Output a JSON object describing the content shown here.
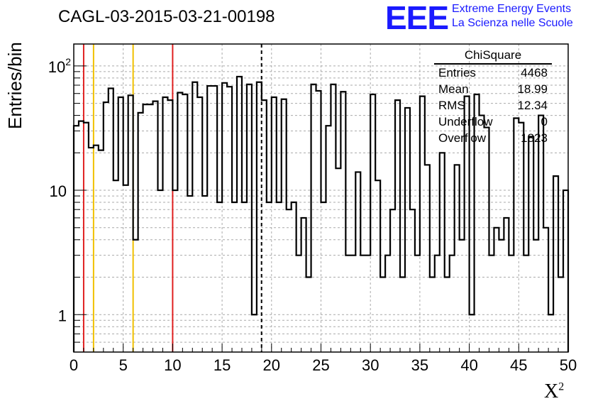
{
  "header": {
    "title": "CAGL-03-2015-03-21-00198"
  },
  "logo": {
    "mark": "EEE",
    "line1": "Extreme Energy Events",
    "line2": "La Scienza nelle Scuole"
  },
  "stats": {
    "title": "ChiSquare",
    "rows": [
      {
        "label": "Entries",
        "value": "4468"
      },
      {
        "label": "Mean",
        "value": "18.99"
      },
      {
        "label": "RMS",
        "value": "12.34"
      },
      {
        "label": "Underflow",
        "value": "0"
      },
      {
        "label": "Overflow",
        "value": "1823"
      }
    ]
  },
  "chart_data": {
    "type": "histogram",
    "title": "CAGL-03-2015-03-21-00198",
    "xlabel": "X",
    "xlabel_sup": "2",
    "ylabel": "Entries/bin",
    "xlim": [
      0,
      50
    ],
    "ylim": [
      0.5,
      150
    ],
    "yscale": "log",
    "bin_width": 0.5,
    "grid": true,
    "x_ticks": [
      "0",
      "5",
      "10",
      "15",
      "20",
      "25",
      "30",
      "35",
      "40",
      "45",
      "50"
    ],
    "y_ticks": [
      {
        "value": 1,
        "label": "1",
        "sup": ""
      },
      {
        "value": 10,
        "label": "10",
        "sup": ""
      },
      {
        "value": 100,
        "label": "10",
        "sup": "2"
      }
    ],
    "values": [
      33,
      36,
      35,
      22,
      23,
      21,
      51,
      66,
      12,
      56,
      11,
      58,
      4,
      42,
      49,
      49,
      52,
      10,
      56,
      53,
      10,
      61,
      59,
      9,
      74,
      56,
      9,
      69,
      69,
      8,
      73,
      68,
      8,
      82,
      8,
      71,
      1,
      74,
      53,
      8,
      56,
      8,
      54,
      7,
      8,
      3,
      6,
      2,
      71,
      63,
      8,
      33,
      71,
      15,
      62,
      3,
      3,
      14,
      3,
      3,
      59,
      12,
      2,
      3,
      7,
      53,
      2,
      46,
      7,
      3,
      57,
      16,
      2,
      3,
      20,
      2,
      3,
      16,
      4,
      57,
      1,
      59,
      40,
      32,
      3,
      5,
      4,
      6,
      3,
      38,
      35,
      3,
      27,
      4,
      40,
      5,
      1,
      13,
      2,
      10
    ],
    "vertical_lines": [
      {
        "x": 1,
        "color": "#e02020",
        "style": "solid"
      },
      {
        "x": 2,
        "color": "#f0c000",
        "style": "solid"
      },
      {
        "x": 6,
        "color": "#f0c000",
        "style": "solid"
      },
      {
        "x": 10,
        "color": "#e02020",
        "style": "solid"
      },
      {
        "x": 18.99,
        "color": "#000000",
        "style": "dashed"
      }
    ]
  }
}
